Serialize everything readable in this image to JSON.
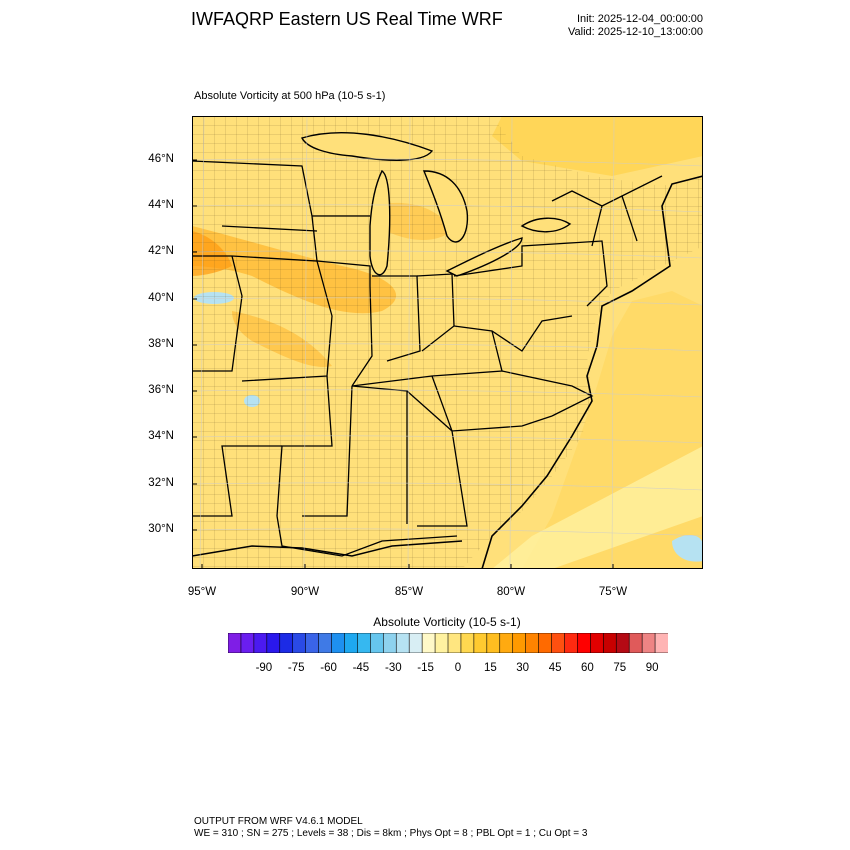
{
  "header": {
    "title": "IWFAQRP Eastern US Real Time WRF",
    "init": "Init: 2025-12-04_00:00:00",
    "valid": "Valid: 2025-12-10_13:00:00"
  },
  "plot": {
    "subtitle": "Absolute Vorticity at 500 hPa   (10-5 s-1)",
    "lat_labels": [
      "46°N",
      "44°N",
      "42°N",
      "40°N",
      "38°N",
      "36°N",
      "34°N",
      "32°N",
      "30°N"
    ],
    "lon_labels": [
      "95°W",
      "90°W",
      "85°W",
      "80°W",
      "75°W"
    ]
  },
  "colorbar": {
    "title": "Absolute Vorticity  (10-5 s-1)",
    "labels": [
      "-90",
      "-75",
      "-60",
      "-45",
      "-30",
      "-15",
      "0",
      "15",
      "30",
      "45",
      "60",
      "75",
      "90"
    ],
    "colors": [
      "#7f1ee6",
      "#6a1ef0",
      "#4b1af0",
      "#2a18ec",
      "#1c2be6",
      "#2a4ae6",
      "#3a64e8",
      "#3f7ae6",
      "#1e90f0",
      "#1ea8f0",
      "#36b8f0",
      "#66c6ee",
      "#8ed2ee",
      "#b6e2f2",
      "#d8eef4",
      "#fff9c8",
      "#fff2a0",
      "#ffe680",
      "#ffd850",
      "#ffca30",
      "#ffbe20",
      "#ffaa10",
      "#ff9a00",
      "#ff8400",
      "#ff6a00",
      "#ff5010",
      "#ff2a10",
      "#ff0000",
      "#e20000",
      "#c80000",
      "#b40a14",
      "#e05a5a",
      "#ee8484",
      "#ffb4b4"
    ]
  },
  "footer": {
    "line1": "OUTPUT FROM WRF V4.6.1 MODEL",
    "line2": "WE = 310 ; SN = 275 ; Levels = 38 ; Dis = 8km ; Phys Opt = 8 ; PBL Opt = 1 ; Cu Opt = 3"
  }
}
